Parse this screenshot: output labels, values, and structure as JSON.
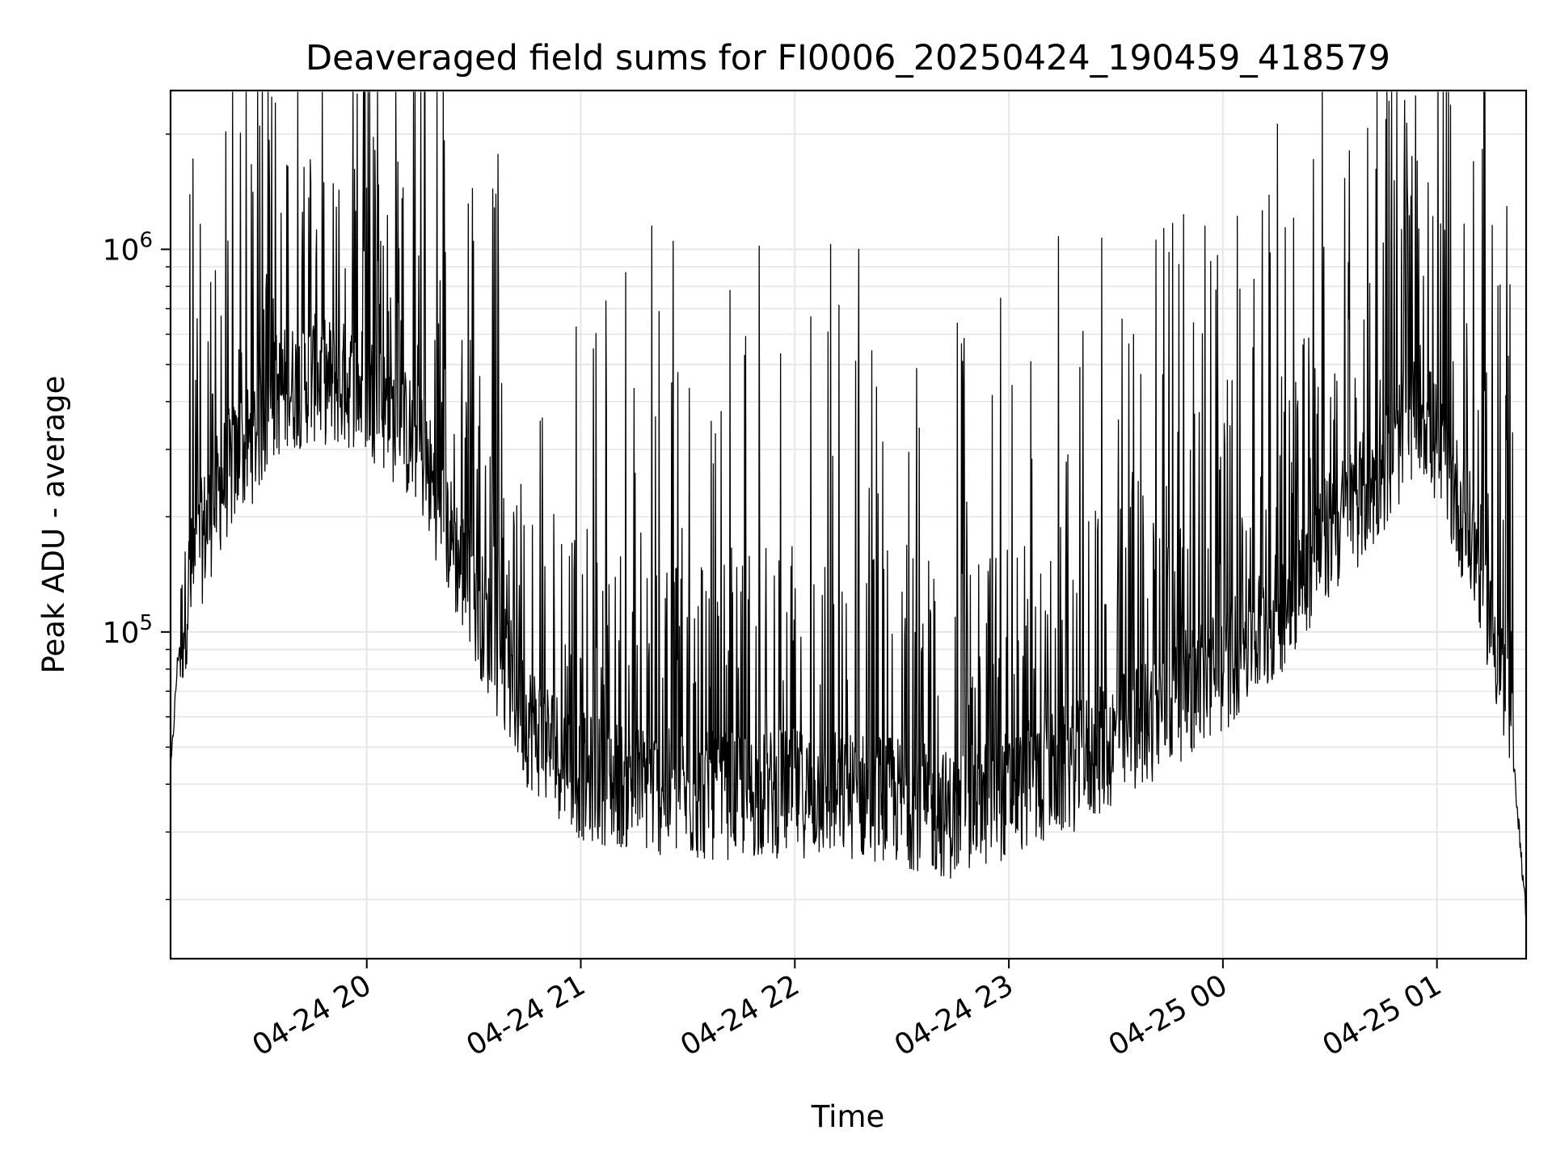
{
  "chart_data": {
    "type": "line",
    "title": "Deaveraged field sums for FI0006_20250424_190459_418579",
    "xlabel": "Time",
    "ylabel": "Peak ADU - average",
    "yscale": "log",
    "grid": true,
    "x_range": [
      "2025-04-24 19:05",
      "2025-04-25 01:25"
    ],
    "ylim": [
      14000,
      2600000
    ],
    "x_ticks": [
      {
        "t": "2025-04-24 20:00",
        "label": "04-24 20"
      },
      {
        "t": "2025-04-24 21:00",
        "label": "04-24 21"
      },
      {
        "t": "2025-04-24 22:00",
        "label": "04-24 22"
      },
      {
        "t": "2025-04-24 23:00",
        "label": "04-24 23"
      },
      {
        "t": "2025-04-25 00:00",
        "label": "04-25 00"
      },
      {
        "t": "2025-04-25 01:00",
        "label": "04-25 01"
      }
    ],
    "y_ticks": [
      {
        "value": 100000,
        "base": "10",
        "exp": "5"
      },
      {
        "value": 1000000,
        "base": "10",
        "exp": "6"
      }
    ],
    "series": [
      {
        "color": "#000000",
        "baseline": [
          {
            "t": "2025-04-24 19:05",
            "v": 42000
          },
          {
            "t": "2025-04-24 19:07",
            "v": 85000
          },
          {
            "t": "2025-04-24 19:10",
            "v": 130000
          },
          {
            "t": "2025-04-24 19:15",
            "v": 190000
          },
          {
            "t": "2025-04-24 19:20",
            "v": 250000
          },
          {
            "t": "2025-04-24 19:28",
            "v": 320000
          },
          {
            "t": "2025-04-24 19:35",
            "v": 420000
          },
          {
            "t": "2025-04-24 19:45",
            "v": 460000
          },
          {
            "t": "2025-04-24 20:00",
            "v": 430000
          },
          {
            "t": "2025-04-24 20:15",
            "v": 300000
          },
          {
            "t": "2025-04-24 20:25",
            "v": 160000
          },
          {
            "t": "2025-04-24 20:35",
            "v": 95000
          },
          {
            "t": "2025-04-24 20:45",
            "v": 58000
          },
          {
            "t": "2025-04-24 21:00",
            "v": 42000
          },
          {
            "t": "2025-04-24 21:30",
            "v": 37000
          },
          {
            "t": "2025-04-24 22:00",
            "v": 38000
          },
          {
            "t": "2025-04-24 22:25",
            "v": 37000
          },
          {
            "t": "2025-04-24 22:45",
            "v": 33000
          },
          {
            "t": "2025-04-24 23:00",
            "v": 38000
          },
          {
            "t": "2025-04-24 23:20",
            "v": 45000
          },
          {
            "t": "2025-04-24 23:40",
            "v": 60000
          },
          {
            "t": "2025-04-25 00:00",
            "v": 80000
          },
          {
            "t": "2025-04-25 00:15",
            "v": 110000
          },
          {
            "t": "2025-04-25 00:30",
            "v": 180000
          },
          {
            "t": "2025-04-25 00:45",
            "v": 260000
          },
          {
            "t": "2025-04-25 00:55",
            "v": 400000
          },
          {
            "t": "2025-04-25 01:05",
            "v": 230000
          },
          {
            "t": "2025-04-25 01:12",
            "v": 150000
          },
          {
            "t": "2025-04-25 01:18",
            "v": 80000
          },
          {
            "t": "2025-04-25 01:22",
            "v": 40000
          },
          {
            "t": "2025-04-25 01:25",
            "v": 18000
          }
        ],
        "spikes": [
          {
            "t": "2025-04-24 19:30",
            "v": 2100000
          },
          {
            "t": "2025-04-24 19:42",
            "v": 1250000
          },
          {
            "t": "2025-04-24 19:56",
            "v": 1080000
          },
          {
            "t": "2025-04-24 20:04",
            "v": 1050000
          },
          {
            "t": "2025-04-24 20:30",
            "v": 1050000
          },
          {
            "t": "2025-04-24 21:20",
            "v": 1150000
          },
          {
            "t": "2025-04-24 21:26",
            "v": 1050000
          },
          {
            "t": "2025-04-24 21:50",
            "v": 1020000
          },
          {
            "t": "2025-04-24 22:10",
            "v": 1030000
          },
          {
            "t": "2025-04-24 22:18",
            "v": 1000000
          },
          {
            "t": "2025-04-24 23:14",
            "v": 1080000
          },
          {
            "t": "2025-04-24 23:26",
            "v": 1070000
          },
          {
            "t": "2025-04-24 23:46",
            "v": 1170000
          },
          {
            "t": "2025-04-24 23:55",
            "v": 1150000
          },
          {
            "t": "2025-04-25 00:04",
            "v": 1220000
          },
          {
            "t": "2025-04-25 00:53",
            "v": 1750000
          }
        ]
      }
    ]
  }
}
